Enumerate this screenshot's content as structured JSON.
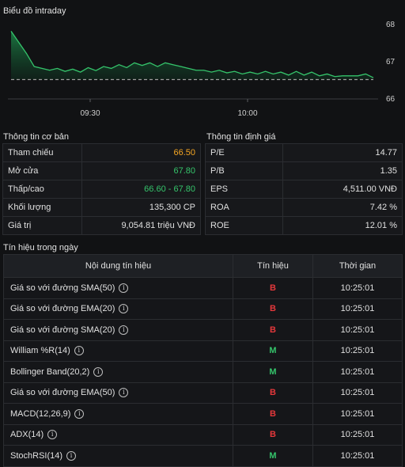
{
  "chart": {
    "title": "Biểu đồ intraday",
    "y_ticks": [
      "68",
      "67",
      "66"
    ],
    "x_ticks": [
      "09:30",
      "10:00"
    ],
    "line_color": "#35c46b",
    "ref_line_color": "#9e9e9e"
  },
  "chart_data": {
    "type": "area",
    "title": "Biểu đồ intraday",
    "ylim": [
      66,
      68
    ],
    "reference": 66.5,
    "x_ticks": [
      "09:30",
      "10:00"
    ],
    "values": [
      67.8,
      67.5,
      67.2,
      66.85,
      66.8,
      66.75,
      66.8,
      66.72,
      66.78,
      66.7,
      66.82,
      66.74,
      66.85,
      66.8,
      66.9,
      66.82,
      66.95,
      66.88,
      66.95,
      66.85,
      66.95,
      66.9,
      66.85,
      66.8,
      66.75,
      66.75,
      66.7,
      66.75,
      66.68,
      66.72,
      66.65,
      66.7,
      66.65,
      66.72,
      66.65,
      66.7,
      66.62,
      66.72,
      66.62,
      66.7,
      66.6,
      66.65,
      66.58,
      66.6,
      66.6,
      66.6,
      66.65,
      66.55
    ]
  },
  "basic": {
    "title": "Thông tin cơ bản",
    "rows": [
      {
        "label": "Tham chiếu",
        "value": "66.50",
        "color": "#f5a623"
      },
      {
        "label": "Mở cửa",
        "value": "67.80",
        "color": "#35c46b"
      },
      {
        "label": "Thấp/cao",
        "value": "66.60 - 67.80",
        "color": "#35c46b"
      },
      {
        "label": "Khối lượng",
        "value": "135,300 CP",
        "color": ""
      },
      {
        "label": "Giá trị",
        "value": "9,054.81 triệu VNĐ",
        "color": ""
      }
    ]
  },
  "valuation": {
    "title": "Thông tin định giá",
    "rows": [
      {
        "label": "P/E",
        "value": "14.77"
      },
      {
        "label": "P/B",
        "value": "1.35"
      },
      {
        "label": "EPS",
        "value": "4,511.00 VNĐ"
      },
      {
        "label": "ROA",
        "value": "7.42 %"
      },
      {
        "label": "ROE",
        "value": "12.01 %"
      }
    ]
  },
  "signals": {
    "title": "Tín hiệu trong ngày",
    "headers": [
      "Nội dung tín hiệu",
      "Tín hiệu",
      "Thời gian"
    ],
    "rows": [
      {
        "name": "Giá so với đường SMA(50)",
        "signal": "B",
        "time": "10:25:01"
      },
      {
        "name": "Giá so với đường EMA(20)",
        "signal": "B",
        "time": "10:25:01"
      },
      {
        "name": "Giá so với đường SMA(20)",
        "signal": "B",
        "time": "10:25:01"
      },
      {
        "name": "William %R(14)",
        "signal": "M",
        "time": "10:25:01"
      },
      {
        "name": "Bollinger Band(20,2)",
        "signal": "M",
        "time": "10:25:01"
      },
      {
        "name": "Giá so với đường EMA(50)",
        "signal": "B",
        "time": "10:25:01"
      },
      {
        "name": "MACD(12,26,9)",
        "signal": "B",
        "time": "10:25:01"
      },
      {
        "name": "ADX(14)",
        "signal": "B",
        "time": "10:25:01"
      },
      {
        "name": "StochRSI(14)",
        "signal": "M",
        "time": "10:25:01"
      }
    ]
  },
  "colors": {
    "buy": "#e5383b",
    "hold": "#35c46b"
  }
}
